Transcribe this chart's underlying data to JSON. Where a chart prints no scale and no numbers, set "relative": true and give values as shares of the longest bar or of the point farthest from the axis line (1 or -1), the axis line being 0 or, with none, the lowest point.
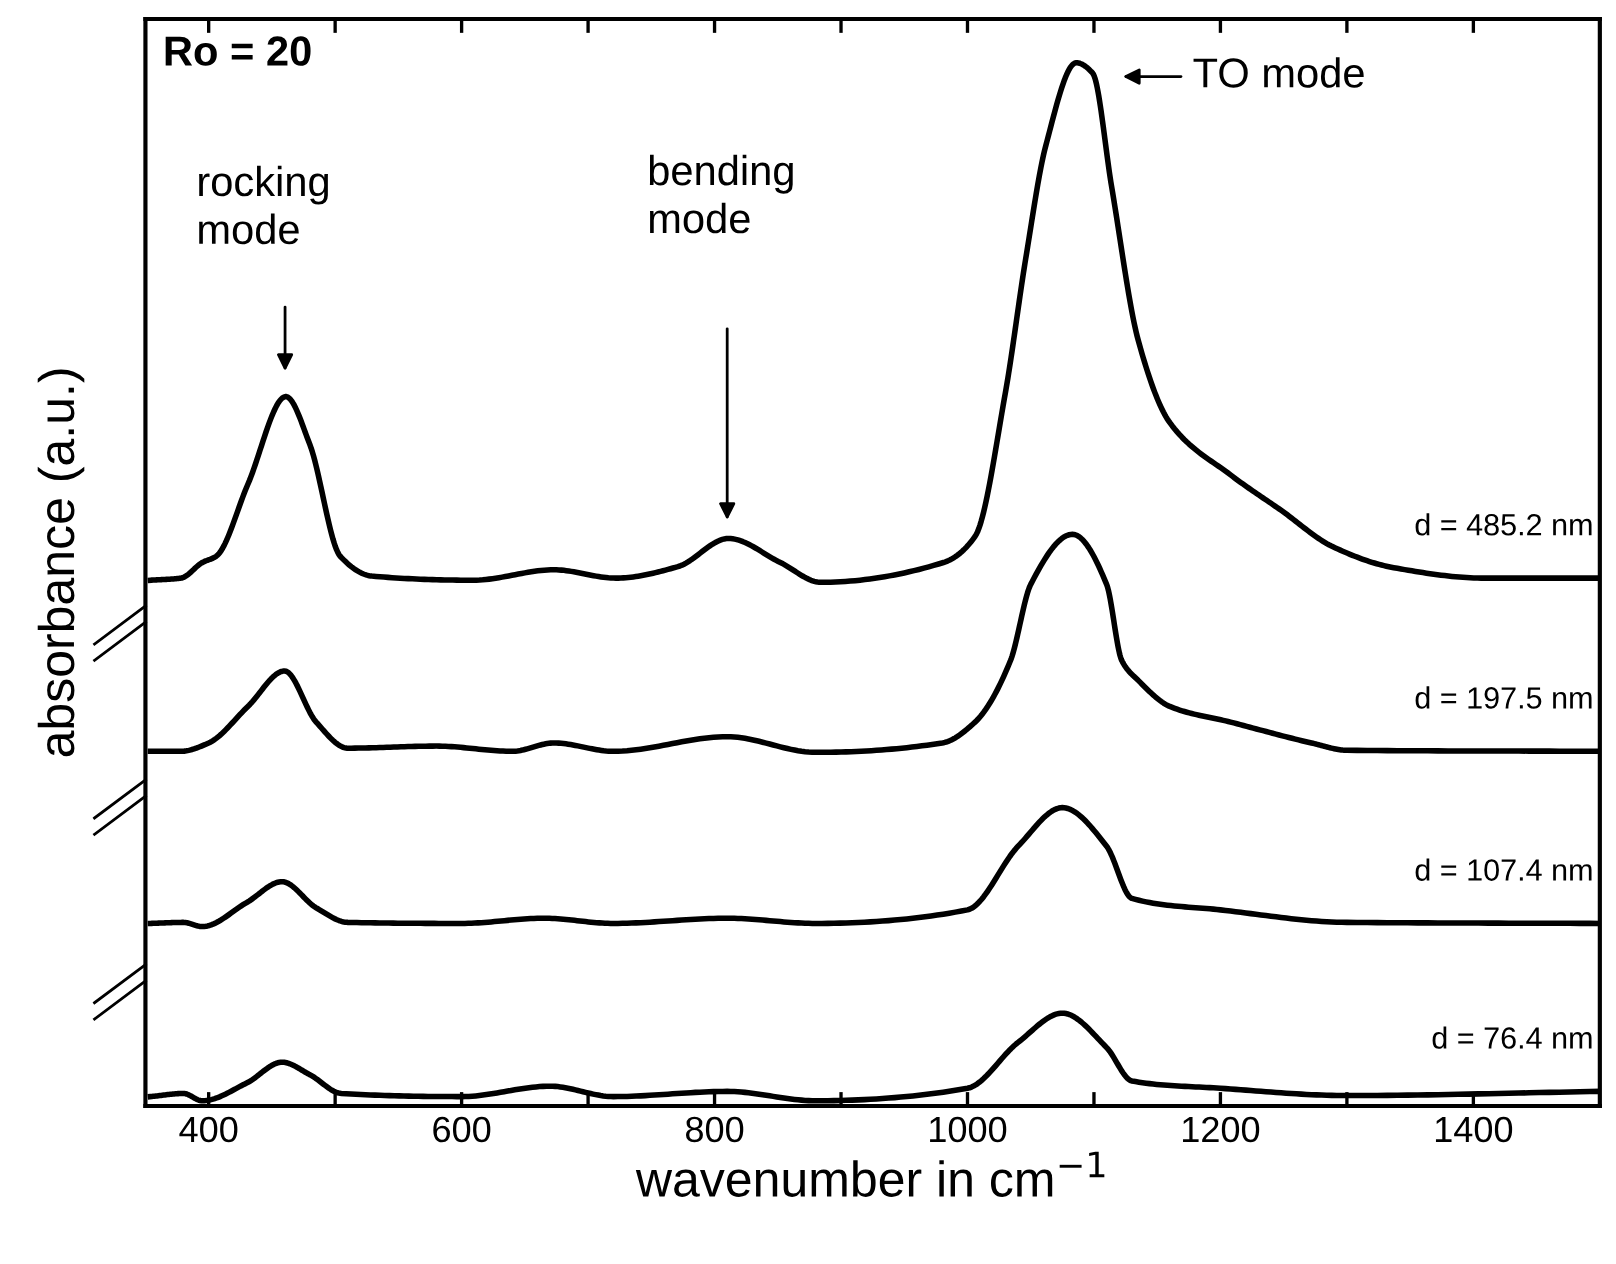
{
  "chart_data": {
    "type": "line",
    "relative": true,
    "xlabel": "wavenumber in cm$^{−1}$",
    "ylabel": "absorbance (a.u.)",
    "xlim": [
      350,
      1500
    ],
    "xticks": [
      400,
      {
        "value": 500,
        "label": null
      },
      600,
      {
        "value": 700,
        "label": null
      },
      800,
      {
        "value": 900,
        "label": null
      },
      1000,
      {
        "value": 1100,
        "label": null
      },
      1200,
      {
        "value": 1300,
        "label": null
      },
      1400
    ],
    "grid": false,
    "legend": false,
    "marker": "none",
    "line_style": "solid",
    "annotations": [
      "Ro = 20",
      "rocking\nmode",
      "bending\nmode",
      "TO mode"
    ],
    "series": [
      {
        "name": "d = 485.2 nm",
        "color": "#000000",
        "x": [
          354,
          378,
          395,
          406,
          431,
          461,
          480,
          504,
          529,
          609,
          673,
          722,
          771,
          811,
          852,
          884,
          981,
          1006,
          1030,
          1046,
          1062,
          1086,
          1099,
          1114,
          1135,
          1160,
          1208,
          1248,
          1289,
          1337,
          1409,
          1500
        ],
        "values": [
          0.504,
          0.506,
          0.521,
          0.527,
          0.596,
          0.68,
          0.634,
          0.527,
          0.508,
          0.504,
          0.514,
          0.506,
          0.517,
          0.544,
          0.521,
          0.502,
          0.521,
          0.546,
          0.684,
          0.812,
          0.921,
          1.0,
          0.99,
          0.881,
          0.734,
          0.655,
          0.605,
          0.571,
          0.536,
          0.516,
          0.506,
          0.506
        ]
      },
      {
        "name": "d = 197.5 nm",
        "color": "#000000",
        "x": [
          354,
          378,
          400,
          431,
          460,
          485,
          510,
          580,
          640,
          673,
          720,
          810,
          880,
          980,
          1006,
          1034,
          1050,
          1083,
          1110,
          1122,
          1135,
          1160,
          1208,
          1272,
          1300,
          1500
        ],
        "values": [
          0.34,
          0.34,
          0.348,
          0.383,
          0.417,
          0.368,
          0.343,
          0.345,
          0.34,
          0.348,
          0.34,
          0.354,
          0.339,
          0.348,
          0.368,
          0.427,
          0.5,
          0.548,
          0.5,
          0.427,
          0.408,
          0.383,
          0.368,
          0.348,
          0.341,
          0.34
        ]
      },
      {
        "name": "d = 107.4 nm",
        "color": "#000000",
        "x": [
          354,
          380,
          395,
          430,
          458,
          485,
          510,
          600,
          665,
          720,
          810,
          880,
          1000,
          1040,
          1075,
          1110,
          1130,
          1200,
          1300,
          1500
        ],
        "values": [
          0.175,
          0.176,
          0.172,
          0.195,
          0.215,
          0.19,
          0.176,
          0.175,
          0.18,
          0.175,
          0.18,
          0.175,
          0.188,
          0.249,
          0.286,
          0.249,
          0.199,
          0.188,
          0.176,
          0.175
        ]
      },
      {
        "name": "d = 76.4 nm",
        "color": "#000000",
        "x": [
          354,
          380,
          395,
          430,
          458,
          480,
          505,
          600,
          670,
          720,
          810,
          880,
          1000,
          1040,
          1075,
          1110,
          1130,
          1200,
          1300,
          1500
        ],
        "values": [
          0.009,
          0.012,
          0.005,
          0.022,
          0.042,
          0.03,
          0.012,
          0.009,
          0.019,
          0.009,
          0.014,
          0.005,
          0.017,
          0.061,
          0.089,
          0.056,
          0.024,
          0.017,
          0.01,
          0.014
        ]
      }
    ]
  }
}
